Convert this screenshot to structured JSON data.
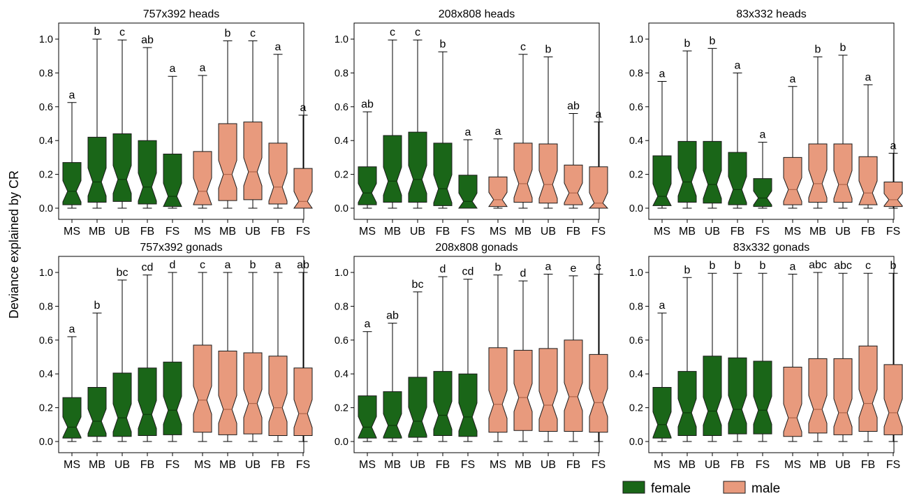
{
  "figure": {
    "ylabel": "Deviance explained by CR",
    "groups": [
      "female",
      "male"
    ],
    "colors": {
      "female": "#1a6618",
      "male": "#e89a7d",
      "stroke": "#1a1a1a"
    },
    "legend": {
      "position": "bottom-right",
      "entries": [
        {
          "label": "female"
        },
        {
          "label": "male"
        }
      ]
    }
  },
  "chart_data": [
    {
      "type": "box",
      "title": "757x392 heads",
      "ylim": [
        0,
        1.1
      ],
      "yticks": [
        0.0,
        0.2,
        0.4,
        0.6,
        0.8,
        1.0
      ],
      "categories": [
        "MS",
        "MB",
        "UB",
        "FB",
        "FS",
        "MS",
        "MB",
        "UB",
        "FB",
        "FS"
      ],
      "groups": [
        "female",
        "female",
        "female",
        "female",
        "female",
        "male",
        "male",
        "male",
        "male",
        "male"
      ],
      "boxes": [
        {
          "min": 0.0,
          "q1": 0.02,
          "median": 0.1,
          "q3": 0.27,
          "max": 0.625,
          "label": "a"
        },
        {
          "min": 0.0,
          "q1": 0.035,
          "median": 0.155,
          "q3": 0.42,
          "max": 1.0,
          "label": "b"
        },
        {
          "min": 0.0,
          "q1": 0.04,
          "median": 0.17,
          "q3": 0.44,
          "max": 0.995,
          "label": "c"
        },
        {
          "min": 0.0,
          "q1": 0.025,
          "median": 0.125,
          "q3": 0.4,
          "max": 0.95,
          "label": "ab"
        },
        {
          "min": 0.0,
          "q1": 0.01,
          "median": 0.07,
          "q3": 0.32,
          "max": 0.78,
          "label": "a"
        },
        {
          "min": 0.0,
          "q1": 0.02,
          "median": 0.1,
          "q3": 0.335,
          "max": 0.785,
          "label": "a"
        },
        {
          "min": 0.0,
          "q1": 0.045,
          "median": 0.2,
          "q3": 0.5,
          "max": 0.99,
          "label": "b"
        },
        {
          "min": 0.0,
          "q1": 0.05,
          "median": 0.215,
          "q3": 0.51,
          "max": 0.99,
          "label": "c"
        },
        {
          "min": 0.0,
          "q1": 0.025,
          "median": 0.125,
          "q3": 0.385,
          "max": 0.91,
          "label": "a"
        },
        {
          "min": 0.0,
          "q1": 0.0,
          "median": 0.04,
          "q3": 0.235,
          "max": 0.55,
          "label": "a"
        }
      ]
    },
    {
      "type": "box",
      "title": "208x808 heads",
      "ylim": [
        0,
        1.1
      ],
      "yticks": [
        0.0,
        0.2,
        0.4,
        0.6,
        0.8,
        1.0
      ],
      "categories": [
        "MS",
        "MB",
        "UB",
        "FB",
        "FS",
        "MS",
        "MB",
        "UB",
        "FB",
        "FS"
      ],
      "groups": [
        "female",
        "female",
        "female",
        "female",
        "female",
        "male",
        "male",
        "male",
        "male",
        "male"
      ],
      "boxes": [
        {
          "min": 0.0,
          "q1": 0.02,
          "median": 0.09,
          "q3": 0.245,
          "max": 0.57,
          "label": "ab"
        },
        {
          "min": 0.0,
          "q1": 0.035,
          "median": 0.16,
          "q3": 0.43,
          "max": 0.995,
          "label": "c"
        },
        {
          "min": 0.0,
          "q1": 0.035,
          "median": 0.17,
          "q3": 0.45,
          "max": 0.995,
          "label": "c"
        },
        {
          "min": 0.0,
          "q1": 0.015,
          "median": 0.115,
          "q3": 0.385,
          "max": 0.925,
          "label": "b"
        },
        {
          "min": 0.0,
          "q1": 0.0,
          "median": 0.04,
          "q3": 0.195,
          "max": 0.405,
          "label": "a"
        },
        {
          "min": 0.0,
          "q1": 0.01,
          "median": 0.05,
          "q3": 0.185,
          "max": 0.41,
          "label": "a"
        },
        {
          "min": 0.0,
          "q1": 0.035,
          "median": 0.145,
          "q3": 0.385,
          "max": 0.91,
          "label": "c"
        },
        {
          "min": 0.0,
          "q1": 0.03,
          "median": 0.14,
          "q3": 0.38,
          "max": 0.895,
          "label": "b"
        },
        {
          "min": 0.0,
          "q1": 0.02,
          "median": 0.09,
          "q3": 0.255,
          "max": 0.56,
          "label": "ab"
        },
        {
          "min": 0.0,
          "q1": 0.0,
          "median": 0.03,
          "q3": 0.245,
          "max": 0.51,
          "label": "a"
        }
      ]
    },
    {
      "type": "box",
      "title": "83x332 heads",
      "ylim": [
        0,
        1.1
      ],
      "yticks": [
        0.0,
        0.2,
        0.4,
        0.6,
        0.8,
        1.0
      ],
      "categories": [
        "MS",
        "MB",
        "UB",
        "FB",
        "FS",
        "MS",
        "MB",
        "UB",
        "FB",
        "FS"
      ],
      "groups": [
        "female",
        "female",
        "female",
        "female",
        "female",
        "male",
        "male",
        "male",
        "male",
        "male"
      ],
      "boxes": [
        {
          "min": 0.0,
          "q1": 0.015,
          "median": 0.07,
          "q3": 0.31,
          "max": 0.75,
          "label": "a"
        },
        {
          "min": 0.0,
          "q1": 0.035,
          "median": 0.155,
          "q3": 0.395,
          "max": 0.93,
          "label": "b"
        },
        {
          "min": 0.0,
          "q1": 0.03,
          "median": 0.14,
          "q3": 0.395,
          "max": 0.945,
          "label": "b"
        },
        {
          "min": 0.0,
          "q1": 0.02,
          "median": 0.11,
          "q3": 0.33,
          "max": 0.8,
          "label": "a"
        },
        {
          "min": 0.0,
          "q1": 0.01,
          "median": 0.06,
          "q3": 0.175,
          "max": 0.39,
          "label": "a"
        },
        {
          "min": 0.0,
          "q1": 0.02,
          "median": 0.11,
          "q3": 0.3,
          "max": 0.72,
          "label": "a"
        },
        {
          "min": 0.0,
          "q1": 0.035,
          "median": 0.145,
          "q3": 0.38,
          "max": 0.895,
          "label": "b"
        },
        {
          "min": 0.0,
          "q1": 0.035,
          "median": 0.14,
          "q3": 0.38,
          "max": 0.905,
          "label": "b"
        },
        {
          "min": 0.0,
          "q1": 0.02,
          "median": 0.09,
          "q3": 0.305,
          "max": 0.73,
          "label": "a"
        },
        {
          "min": 0.0,
          "q1": 0.01,
          "median": 0.05,
          "q3": 0.155,
          "max": 0.325,
          "label": "a"
        }
      ]
    },
    {
      "type": "box",
      "title": "757x392 gonads",
      "ylim": [
        0,
        1.1
      ],
      "yticks": [
        0.0,
        0.2,
        0.4,
        0.6,
        0.8,
        1.0
      ],
      "categories": [
        "MS",
        "MB",
        "UB",
        "FB",
        "FS",
        "MS",
        "MB",
        "UB",
        "FB",
        "FS"
      ],
      "groups": [
        "female",
        "female",
        "female",
        "female",
        "female",
        "male",
        "male",
        "male",
        "male",
        "male"
      ],
      "boxes": [
        {
          "min": 0.0,
          "q1": 0.02,
          "median": 0.085,
          "q3": 0.26,
          "max": 0.62,
          "label": "a"
        },
        {
          "min": 0.0,
          "q1": 0.03,
          "median": 0.12,
          "q3": 0.32,
          "max": 0.76,
          "label": "b"
        },
        {
          "min": 0.0,
          "q1": 0.03,
          "median": 0.14,
          "q3": 0.405,
          "max": 0.955,
          "label": "bc"
        },
        {
          "min": 0.0,
          "q1": 0.035,
          "median": 0.16,
          "q3": 0.435,
          "max": 0.985,
          "label": "cd"
        },
        {
          "min": 0.0,
          "q1": 0.04,
          "median": 0.185,
          "q3": 0.47,
          "max": 1.0,
          "label": "d"
        },
        {
          "min": 0.0,
          "q1": 0.055,
          "median": 0.245,
          "q3": 0.57,
          "max": 1.0,
          "label": "c"
        },
        {
          "min": 0.0,
          "q1": 0.04,
          "median": 0.19,
          "q3": 0.535,
          "max": 1.0,
          "label": "a"
        },
        {
          "min": 0.0,
          "q1": 0.045,
          "median": 0.225,
          "q3": 0.525,
          "max": 1.0,
          "label": "b"
        },
        {
          "min": 0.0,
          "q1": 0.035,
          "median": 0.2,
          "q3": 0.505,
          "max": 1.0,
          "label": "a"
        },
        {
          "min": 0.0,
          "q1": 0.035,
          "median": 0.165,
          "q3": 0.435,
          "max": 1.0,
          "label": "ab"
        }
      ]
    },
    {
      "type": "box",
      "title": "208x808 gonads",
      "ylim": [
        0,
        1.1
      ],
      "yticks": [
        0.0,
        0.2,
        0.4,
        0.6,
        0.8,
        1.0
      ],
      "categories": [
        "MS",
        "MB",
        "UB",
        "FB",
        "FS",
        "MS",
        "MB",
        "UB",
        "FB",
        "FS"
      ],
      "groups": [
        "female",
        "female",
        "female",
        "female",
        "female",
        "male",
        "male",
        "male",
        "male",
        "male"
      ],
      "boxes": [
        {
          "min": 0.0,
          "q1": 0.02,
          "median": 0.085,
          "q3": 0.27,
          "max": 0.65,
          "label": "a"
        },
        {
          "min": 0.0,
          "q1": 0.02,
          "median": 0.095,
          "q3": 0.295,
          "max": 0.7,
          "label": "ab"
        },
        {
          "min": 0.0,
          "q1": 0.025,
          "median": 0.12,
          "q3": 0.38,
          "max": 0.885,
          "label": "bc"
        },
        {
          "min": 0.0,
          "q1": 0.035,
          "median": 0.155,
          "q3": 0.415,
          "max": 0.975,
          "label": "d"
        },
        {
          "min": 0.0,
          "q1": 0.03,
          "median": 0.145,
          "q3": 0.4,
          "max": 0.96,
          "label": "cd"
        },
        {
          "min": 0.0,
          "q1": 0.055,
          "median": 0.22,
          "q3": 0.555,
          "max": 0.985,
          "label": "b"
        },
        {
          "min": 0.0,
          "q1": 0.065,
          "median": 0.26,
          "q3": 0.54,
          "max": 0.95,
          "label": "d"
        },
        {
          "min": 0.0,
          "q1": 0.06,
          "median": 0.215,
          "q3": 0.55,
          "max": 0.99,
          "label": "a"
        },
        {
          "min": 0.0,
          "q1": 0.06,
          "median": 0.265,
          "q3": 0.6,
          "max": 0.98,
          "label": "e"
        },
        {
          "min": 0.0,
          "q1": 0.055,
          "median": 0.23,
          "q3": 0.515,
          "max": 0.99,
          "label": "c"
        }
      ]
    },
    {
      "type": "box",
      "title": "83x332 gonads",
      "ylim": [
        0,
        1.1
      ],
      "yticks": [
        0.0,
        0.2,
        0.4,
        0.6,
        0.8,
        1.0
      ],
      "categories": [
        "MS",
        "MB",
        "UB",
        "FB",
        "FS",
        "MS",
        "MB",
        "UB",
        "FB",
        "FS"
      ],
      "groups": [
        "female",
        "female",
        "female",
        "female",
        "female",
        "male",
        "male",
        "male",
        "male",
        "male"
      ],
      "boxes": [
        {
          "min": 0.0,
          "q1": 0.02,
          "median": 0.1,
          "q3": 0.32,
          "max": 0.76,
          "label": "a"
        },
        {
          "min": 0.0,
          "q1": 0.035,
          "median": 0.17,
          "q3": 0.415,
          "max": 0.97,
          "label": "b"
        },
        {
          "min": 0.0,
          "q1": 0.035,
          "median": 0.18,
          "q3": 0.505,
          "max": 0.995,
          "label": "b"
        },
        {
          "min": 0.0,
          "q1": 0.045,
          "median": 0.19,
          "q3": 0.495,
          "max": 0.995,
          "label": "b"
        },
        {
          "min": 0.0,
          "q1": 0.045,
          "median": 0.185,
          "q3": 0.475,
          "max": 0.995,
          "label": "b"
        },
        {
          "min": 0.0,
          "q1": 0.03,
          "median": 0.14,
          "q3": 0.44,
          "max": 0.99,
          "label": "a"
        },
        {
          "min": 0.0,
          "q1": 0.05,
          "median": 0.19,
          "q3": 0.49,
          "max": 1.0,
          "label": "abc"
        },
        {
          "min": 0.0,
          "q1": 0.04,
          "median": 0.17,
          "q3": 0.49,
          "max": 0.995,
          "label": "abc"
        },
        {
          "min": 0.0,
          "q1": 0.06,
          "median": 0.225,
          "q3": 0.565,
          "max": 0.995,
          "label": "c"
        },
        {
          "min": 0.0,
          "q1": 0.04,
          "median": 0.17,
          "q3": 0.455,
          "max": 0.995,
          "label": "b"
        }
      ]
    }
  ]
}
